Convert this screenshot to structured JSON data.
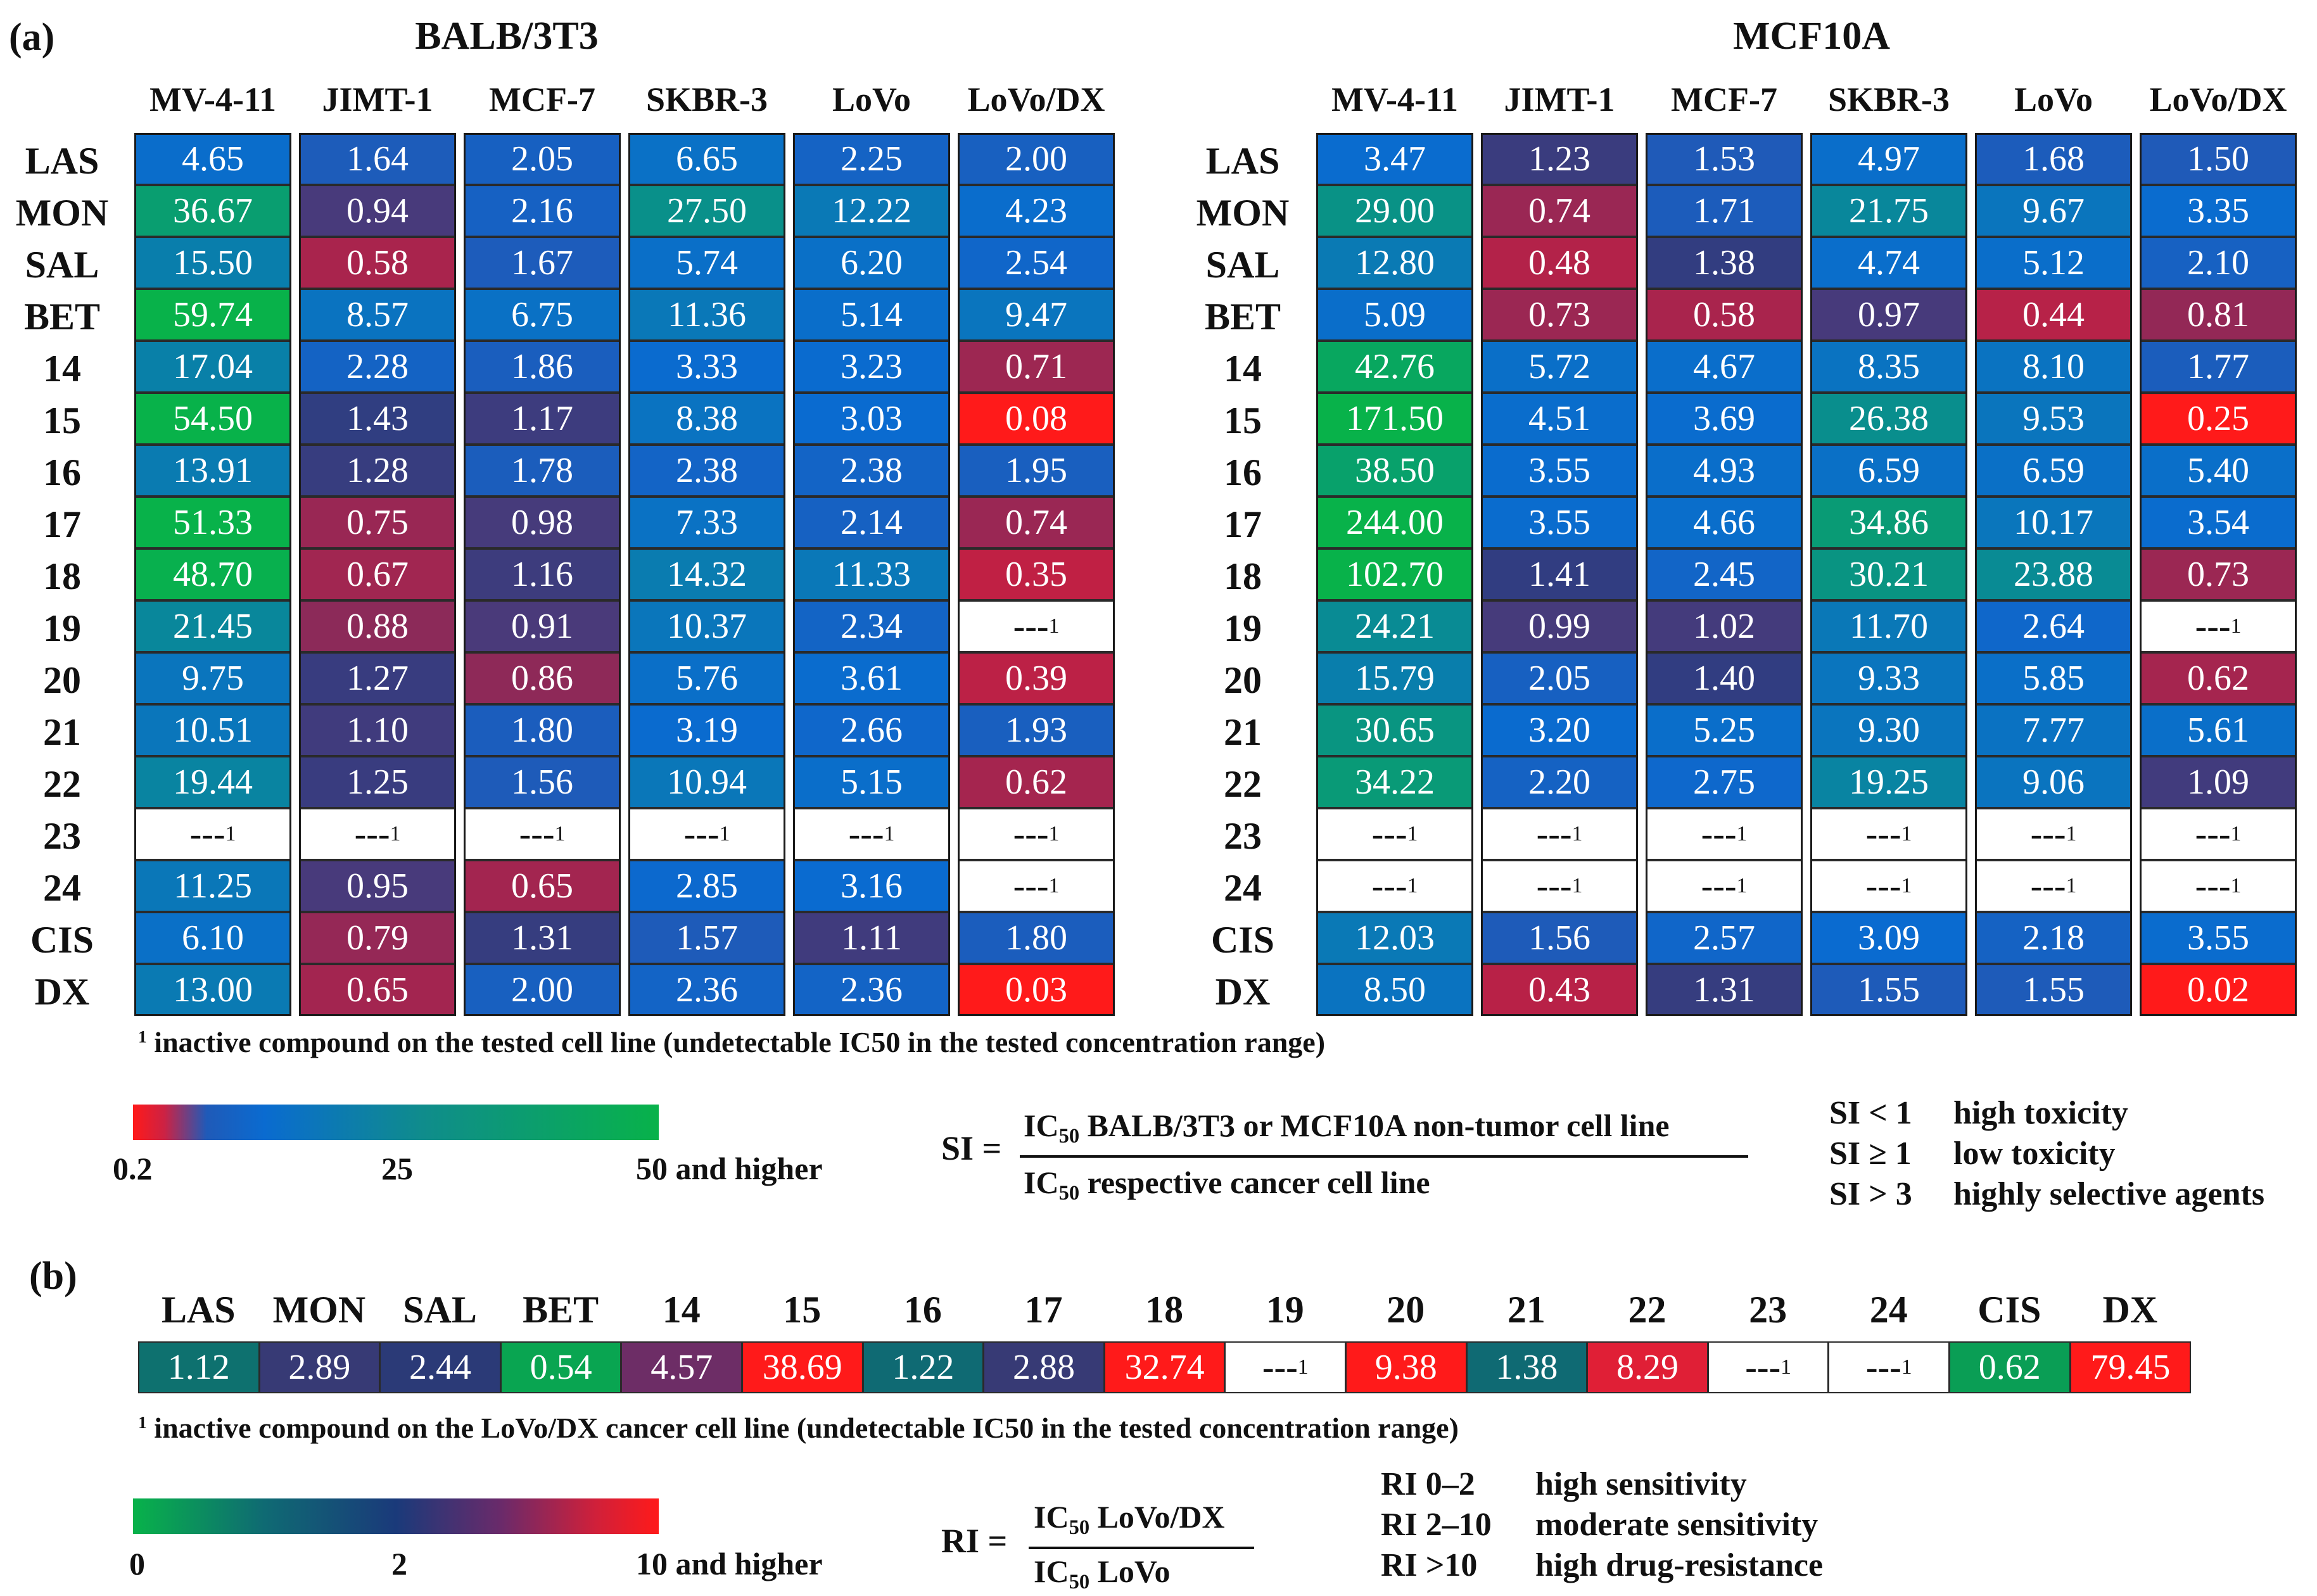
{
  "panel_a": {
    "tag": "(a)",
    "left_title": "BALB/3T3",
    "right_title": "MCF10A",
    "footnote": "inactive compound on the tested cell line (undetectable IC50 in the tested concentration range)",
    "scale": {
      "min_label": "0.2",
      "mid_label": "25",
      "max_label": "50 and higher"
    },
    "formula": {
      "lhs": "SI =",
      "numerator": "IC50 BALB/3T3 or MCF10A non-tumor cell line",
      "denominator": "IC50 respective cancer cell line"
    },
    "legend": [
      {
        "key": "SI < 1",
        "text": "high toxicity"
      },
      {
        "key": "SI ≥ 1",
        "text": "low toxicity"
      },
      {
        "key": "SI > 3",
        "text": "highly selective agents"
      }
    ]
  },
  "panel_b": {
    "tag": "(b)",
    "footnote": "inactive compound on the LoVo/DX cancer cell line (undetectable IC50 in the tested concentration range)",
    "scale": {
      "min_label": "0",
      "mid_label": "2",
      "max_label": "10 and higher"
    },
    "formula": {
      "lhs": "RI =",
      "numerator": "IC50 LoVo/DX",
      "denominator": "IC50 LoVo"
    },
    "legend": [
      {
        "key": "RI 0–2",
        "text": "high sensitivity"
      },
      {
        "key": "RI 2–10",
        "text": "moderate sensitivity"
      },
      {
        "key": "RI >10",
        "text": "high drug-resistance"
      }
    ]
  },
  "colors": {
    "red": "#ff1a1a",
    "navy": "#233a78",
    "blue": "#0a6bd0",
    "teal": "#0f8c8c",
    "green": "#08b24a"
  },
  "chart_data": [
    {
      "type": "heatmap",
      "title": "BALB/3T3",
      "columns": [
        "MV-4-11",
        "JIMT-1",
        "MCF-7",
        "SKBR-3",
        "LoVo",
        "LoVo/DX"
      ],
      "rows": [
        "LAS",
        "MON",
        "SAL",
        "BET",
        "14",
        "15",
        "16",
        "17",
        "18",
        "19",
        "20",
        "21",
        "22",
        "23",
        "24",
        "CIS",
        "DX"
      ],
      "values": [
        [
          "4.65",
          "1.64",
          "2.05",
          "6.65",
          "2.25",
          "2.00"
        ],
        [
          "36.67",
          "0.94",
          "2.16",
          "27.50",
          "12.22",
          "4.23"
        ],
        [
          "15.50",
          "0.58",
          "1.67",
          "5.74",
          "6.20",
          "2.54"
        ],
        [
          "59.74",
          "8.57",
          "6.75",
          "11.36",
          "5.14",
          "9.47"
        ],
        [
          "17.04",
          "2.28",
          "1.86",
          "3.33",
          "3.23",
          "0.71"
        ],
        [
          "54.50",
          "1.43",
          "1.17",
          "8.38",
          "3.03",
          "0.08"
        ],
        [
          "13.91",
          "1.28",
          "1.78",
          "2.38",
          "2.38",
          "1.95"
        ],
        [
          "51.33",
          "0.75",
          "0.98",
          "7.33",
          "2.14",
          "0.74"
        ],
        [
          "48.70",
          "0.67",
          "1.16",
          "14.32",
          "11.33",
          "0.35"
        ],
        [
          "21.45",
          "0.88",
          "0.91",
          "10.37",
          "2.34",
          "---"
        ],
        [
          "9.75",
          "1.27",
          "0.86",
          "5.76",
          "3.61",
          "0.39"
        ],
        [
          "10.51",
          "1.10",
          "1.80",
          "3.19",
          "2.66",
          "1.93"
        ],
        [
          "19.44",
          "1.25",
          "1.56",
          "10.94",
          "5.15",
          "0.62"
        ],
        [
          "---",
          "---",
          "---",
          "---",
          "---",
          "---"
        ],
        [
          "11.25",
          "0.95",
          "0.65",
          "2.85",
          "3.16",
          "---"
        ],
        [
          "6.10",
          "0.79",
          "1.31",
          "1.57",
          "1.11",
          "1.80"
        ],
        [
          "13.00",
          "0.65",
          "2.00",
          "2.36",
          "2.36",
          "0.03"
        ]
      ]
    },
    {
      "type": "heatmap",
      "title": "MCF10A",
      "columns": [
        "MV-4-11",
        "JIMT-1",
        "MCF-7",
        "SKBR-3",
        "LoVo",
        "LoVo/DX"
      ],
      "rows": [
        "LAS",
        "MON",
        "SAL",
        "BET",
        "14",
        "15",
        "16",
        "17",
        "18",
        "19",
        "20",
        "21",
        "22",
        "23",
        "24",
        "CIS",
        "DX"
      ],
      "values": [
        [
          "3.47",
          "1.23",
          "1.53",
          "4.97",
          "1.68",
          "1.50"
        ],
        [
          "29.00",
          "0.74",
          "1.71",
          "21.75",
          "9.67",
          "3.35"
        ],
        [
          "12.80",
          "0.48",
          "1.38",
          "4.74",
          "5.12",
          "2.10"
        ],
        [
          "5.09",
          "0.73",
          "0.58",
          "0.97",
          "0.44",
          "0.81"
        ],
        [
          "42.76",
          "5.72",
          "4.67",
          "8.35",
          "8.10",
          "1.77"
        ],
        [
          "171.50",
          "4.51",
          "3.69",
          "26.38",
          "9.53",
          "0.25"
        ],
        [
          "38.50",
          "3.55",
          "4.93",
          "6.59",
          "6.59",
          "5.40"
        ],
        [
          "244.00",
          "3.55",
          "4.66",
          "34.86",
          "10.17",
          "3.54"
        ],
        [
          "102.70",
          "1.41",
          "2.45",
          "30.21",
          "23.88",
          "0.73"
        ],
        [
          "24.21",
          "0.99",
          "1.02",
          "11.70",
          "2.64",
          "---"
        ],
        [
          "15.79",
          "2.05",
          "1.40",
          "9.33",
          "5.85",
          "0.62"
        ],
        [
          "30.65",
          "3.20",
          "5.25",
          "9.30",
          "7.77",
          "5.61"
        ],
        [
          "34.22",
          "2.20",
          "2.75",
          "19.25",
          "9.06",
          "1.09"
        ],
        [
          "---",
          "---",
          "---",
          "---",
          "---",
          "---"
        ],
        [
          "---",
          "---",
          "---",
          "---",
          "---",
          "---"
        ],
        [
          "12.03",
          "1.56",
          "2.57",
          "3.09",
          "2.18",
          "3.55"
        ],
        [
          "8.50",
          "0.43",
          "1.31",
          "1.55",
          "1.55",
          "0.02"
        ]
      ]
    },
    {
      "type": "heatmap",
      "title": "RI",
      "columns": [
        "LAS",
        "MON",
        "SAL",
        "BET",
        "14",
        "15",
        "16",
        "17",
        "18",
        "19",
        "20",
        "21",
        "22",
        "23",
        "24",
        "CIS",
        "DX"
      ],
      "values": [
        "1.12",
        "2.89",
        "2.44",
        "0.54",
        "4.57",
        "38.69",
        "1.22",
        "2.88",
        "32.74",
        "---",
        "9.38",
        "1.38",
        "8.29",
        "---",
        "---",
        "0.62",
        "79.45"
      ]
    }
  ]
}
